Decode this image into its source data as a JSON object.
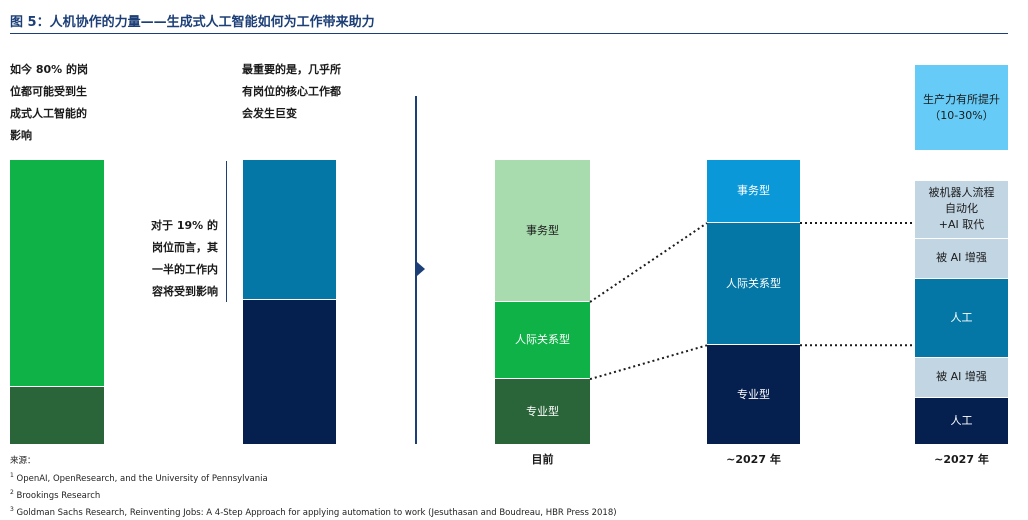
{
  "title": "图 5：人机协作的力量——生成式人工智能如何为工作带来助力",
  "left_panel": {
    "text1": "如今 80% 的岗\n位都可能受到生\n成式人工智能的\n影响",
    "text2": "最重要的是，几乎所\n有岗位的核心工作都\n会发生巨变",
    "text3": "对于 19% 的\n岗位而言，其\n一半的工作内\n容将受到影响"
  },
  "colors": {
    "green": "#0eb246",
    "dark_green": "#2a6439",
    "light_green": "#a8dcae",
    "blue": "#0477a6",
    "navy": "#05204f",
    "sky": "#66ccf7",
    "light_blue_grey": "#c1d5e3",
    "bright_blue": "#0a98d8"
  },
  "chart_data": [
    {
      "type": "bar",
      "series": [
        {
          "name": "",
          "values": [
            80,
            20
          ]
        }
      ],
      "bars": [
        {
          "segments": [
            {
              "label": "",
              "value": 80,
              "color": "#0eb246"
            },
            {
              "label": "",
              "value": 20,
              "color": "#2a6439"
            }
          ]
        },
        {
          "segments": [
            {
              "label": "",
              "value": 49,
              "color": "#0477a6"
            },
            {
              "label": "",
              "value": 51,
              "color": "#05204f"
            }
          ]
        }
      ]
    },
    {
      "type": "bar",
      "categories": [
        "目前",
        "~2027 年",
        "~2027 年"
      ],
      "stacks": [
        {
          "category": "目前",
          "segments": [
            {
              "label": "事务型",
              "value": 50,
              "color": "#a8dcae",
              "text": "#1a1a1a"
            },
            {
              "label": "人际关系型",
              "value": 27,
              "color": "#0eb246",
              "text": "#ffffff"
            },
            {
              "label": "专业型",
              "value": 23,
              "color": "#2a6439",
              "text": "#ffffff"
            }
          ]
        },
        {
          "category": "~2027 年",
          "segments": [
            {
              "label": "事务型",
              "value": 22,
              "color": "#0a98d8",
              "text": "#ffffff"
            },
            {
              "label": "人际关系型",
              "value": 43,
              "color": "#0477a6",
              "text": "#ffffff"
            },
            {
              "label": "专业型",
              "value": 35,
              "color": "#05204f",
              "text": "#ffffff"
            }
          ]
        },
        {
          "category": "~2027 年",
          "segments": [
            {
              "label": "生产力有所提升\n（10-30%）",
              "value": 24,
              "color": "#66ccf7",
              "text": "#1a1a1a",
              "gap_after": true
            },
            {
              "label": "被机器人流程\n自动化\n+AI 取代",
              "value": 16,
              "color": "#c1d5e3",
              "text": "#1a1a1a"
            },
            {
              "label": "被 AI 增强",
              "value": 11,
              "color": "#c1d5e3",
              "text": "#1a1a1a"
            },
            {
              "label": "人工",
              "value": 22,
              "color": "#0477a6",
              "text": "#ffffff"
            },
            {
              "label": "被 AI 增强",
              "value": 11,
              "color": "#c1d5e3",
              "text": "#1a1a1a"
            },
            {
              "label": "人工",
              "value": 13,
              "color": "#05204f",
              "text": "#ffffff"
            }
          ]
        }
      ]
    }
  ],
  "sources": {
    "heading": "来源：",
    "items": [
      {
        "mark": "1",
        "text": "OpenAI, OpenResearch, and the University of Pennsylvania"
      },
      {
        "mark": "2",
        "text": "Brookings Research"
      },
      {
        "mark": "3",
        "text": "Goldman Sachs Research, Reinventing Jobs: A 4-Step Approach for applying automation to work (Jesuthasan and Boudreau, HBR Press 2018)"
      }
    ]
  }
}
